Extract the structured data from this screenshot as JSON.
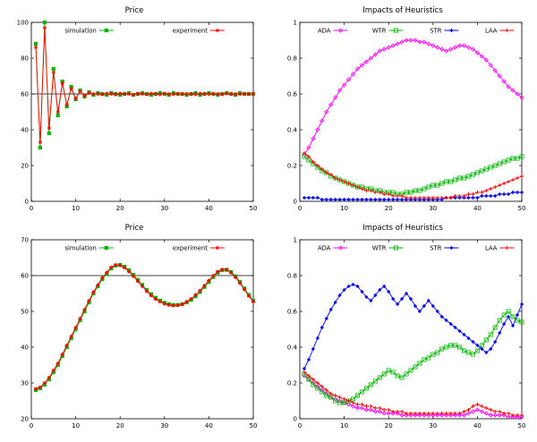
{
  "page": {
    "background": "#ffffff"
  },
  "chart_data": [
    {
      "type": "line",
      "title": "Price",
      "xlabel": "",
      "ylabel": "",
      "xlim": [
        0,
        50
      ],
      "ylim": [
        0,
        100
      ],
      "xticks": [
        0,
        10,
        20,
        30,
        40,
        50
      ],
      "yticks": [
        0,
        20,
        40,
        60,
        80,
        100
      ],
      "hline": 60,
      "grid": false,
      "legend_position": "top-inside",
      "series": [
        {
          "name": "simulation",
          "color": "#00b400",
          "marker": "square",
          "values": [
            88,
            30,
            100,
            38,
            74,
            48,
            67,
            53,
            64,
            57,
            62,
            58.5,
            61,
            59.5,
            60.5,
            60,
            59.5,
            60.5,
            60,
            59.5,
            60,
            60.5,
            59.5,
            60,
            60.5,
            60,
            59.5,
            60,
            60.5,
            60,
            59.5,
            60.5,
            60,
            60,
            59.5,
            60,
            60.5,
            59.5,
            60,
            60.5,
            60,
            59.5,
            60,
            60.5,
            60,
            59.5,
            60.5,
            60,
            60,
            60
          ]
        },
        {
          "name": "experiment",
          "color": "#ff0000",
          "marker": "star",
          "values": [
            86,
            33,
            97,
            41,
            72,
            50,
            66,
            54,
            63,
            57.5,
            61.5,
            59,
            60.5,
            60,
            60,
            59.8,
            60.2,
            60,
            59.7,
            60.3,
            60,
            60,
            59.6,
            60.2,
            60,
            59.8,
            60.3,
            60,
            59.7,
            60.2,
            60,
            59.8,
            60.2,
            59.9,
            60.1,
            60,
            59.8,
            60.2,
            60,
            59.9,
            60.1,
            60,
            59.8,
            60.2,
            60,
            60,
            59.9,
            60.1,
            60,
            60
          ]
        }
      ]
    },
    {
      "type": "line",
      "title": "Impacts of Heuristics",
      "xlabel": "",
      "ylabel": "",
      "xlim": [
        0,
        50
      ],
      "ylim": [
        0,
        1
      ],
      "xticks": [
        0,
        10,
        20,
        30,
        40,
        50
      ],
      "yticks": [
        0,
        0.2,
        0.4,
        0.6,
        0.8,
        1
      ],
      "hline": null,
      "grid": false,
      "legend_position": "top-inside",
      "series": [
        {
          "name": "ADA",
          "color": "#ff00ff",
          "marker": "diamond",
          "values": [
            0.26,
            0.3,
            0.35,
            0.4,
            0.45,
            0.5,
            0.54,
            0.58,
            0.62,
            0.65,
            0.68,
            0.71,
            0.74,
            0.76,
            0.78,
            0.8,
            0.82,
            0.84,
            0.85,
            0.86,
            0.87,
            0.88,
            0.89,
            0.9,
            0.9,
            0.9,
            0.89,
            0.89,
            0.88,
            0.87,
            0.86,
            0.85,
            0.84,
            0.85,
            0.86,
            0.87,
            0.87,
            0.86,
            0.85,
            0.83,
            0.81,
            0.79,
            0.76,
            0.73,
            0.7,
            0.67,
            0.64,
            0.62,
            0.6,
            0.58
          ]
        },
        {
          "name": "WTR",
          "color": "#00b400",
          "marker": "osquare",
          "values": [
            0.25,
            0.23,
            0.21,
            0.19,
            0.17,
            0.16,
            0.14,
            0.13,
            0.12,
            0.11,
            0.1,
            0.09,
            0.08,
            0.08,
            0.07,
            0.07,
            0.06,
            0.06,
            0.05,
            0.05,
            0.05,
            0.04,
            0.04,
            0.05,
            0.05,
            0.06,
            0.06,
            0.07,
            0.08,
            0.09,
            0.09,
            0.1,
            0.11,
            0.11,
            0.12,
            0.13,
            0.13,
            0.14,
            0.15,
            0.16,
            0.17,
            0.18,
            0.19,
            0.2,
            0.21,
            0.22,
            0.23,
            0.24,
            0.24,
            0.25
          ]
        },
        {
          "name": "STR",
          "color": "#0000ff",
          "marker": "fdiamond",
          "values": [
            0.02,
            0.02,
            0.02,
            0.02,
            0.01,
            0.01,
            0.01,
            0.01,
            0.01,
            0.01,
            0.01,
            0.01,
            0.01,
            0.01,
            0.01,
            0.01,
            0.01,
            0.01,
            0.01,
            0.01,
            0.01,
            0.01,
            0.01,
            0.01,
            0.01,
            0.01,
            0.01,
            0.01,
            0.01,
            0.01,
            0.01,
            0.01,
            0.02,
            0.02,
            0.02,
            0.02,
            0.02,
            0.02,
            0.02,
            0.02,
            0.03,
            0.03,
            0.03,
            0.03,
            0.04,
            0.04,
            0.04,
            0.05,
            0.05,
            0.05
          ]
        },
        {
          "name": "LAA",
          "color": "#ff0000",
          "marker": "plus",
          "values": [
            0.27,
            0.25,
            0.22,
            0.2,
            0.18,
            0.16,
            0.15,
            0.13,
            0.12,
            0.11,
            0.1,
            0.09,
            0.08,
            0.07,
            0.06,
            0.06,
            0.05,
            0.05,
            0.04,
            0.04,
            0.03,
            0.03,
            0.03,
            0.02,
            0.02,
            0.02,
            0.02,
            0.02,
            0.02,
            0.02,
            0.02,
            0.02,
            0.02,
            0.02,
            0.03,
            0.03,
            0.03,
            0.04,
            0.04,
            0.05,
            0.05,
            0.06,
            0.07,
            0.08,
            0.09,
            0.1,
            0.11,
            0.12,
            0.13,
            0.14
          ]
        }
      ]
    },
    {
      "type": "line",
      "title": "Price",
      "xlabel": "",
      "ylabel": "",
      "xlim": [
        0,
        50
      ],
      "ylim": [
        20,
        70
      ],
      "xticks": [
        0,
        10,
        20,
        30,
        40,
        50
      ],
      "yticks": [
        20,
        30,
        40,
        50,
        60,
        70
      ],
      "hline": 60,
      "grid": false,
      "legend_position": "top-inside",
      "series": [
        {
          "name": "simulation",
          "color": "#00b400",
          "marker": "square",
          "values": [
            28,
            28.5,
            29.5,
            31,
            33,
            35,
            37.5,
            40,
            42.5,
            45,
            47.5,
            50,
            52.5,
            55,
            57,
            59,
            60.5,
            62,
            62.8,
            63,
            62.5,
            61.5,
            60.2,
            58.8,
            57.4,
            56,
            54.8,
            53.8,
            53,
            52.4,
            52,
            51.8,
            51.8,
            52,
            52.5,
            53.2,
            54.2,
            55.4,
            56.8,
            58.2,
            59.6,
            60.8,
            61.5,
            61.6,
            61,
            59.8,
            58.2,
            56.4,
            54.6,
            53
          ]
        },
        {
          "name": "experiment",
          "color": "#ff0000",
          "marker": "star",
          "values": [
            28.4,
            28.8,
            30,
            31.5,
            33.5,
            35.5,
            38,
            40.5,
            43,
            45.5,
            48,
            50.5,
            53,
            55.4,
            57.4,
            59.4,
            60.9,
            62.3,
            63,
            62.8,
            62.2,
            61.1,
            59.8,
            58.4,
            57,
            55.6,
            54.4,
            53.4,
            52.7,
            52.1,
            51.8,
            51.6,
            51.7,
            52,
            52.7,
            53.5,
            54.6,
            55.8,
            57.2,
            58.6,
            60,
            61.1,
            61.7,
            61.7,
            60.8,
            59.5,
            57.9,
            56.1,
            54.3,
            52.7
          ]
        }
      ]
    },
    {
      "type": "line",
      "title": "Impacts of Heuristics",
      "xlabel": "",
      "ylabel": "",
      "xlim": [
        0,
        50
      ],
      "ylim": [
        0,
        1
      ],
      "xticks": [
        0,
        10,
        20,
        30,
        40,
        50
      ],
      "yticks": [
        0,
        0.2,
        0.4,
        0.6,
        0.8,
        1
      ],
      "hline": null,
      "grid": false,
      "legend_position": "top-inside",
      "series": [
        {
          "name": "ADA",
          "color": "#ff00ff",
          "marker": "diamond",
          "values": [
            0.24,
            0.22,
            0.2,
            0.18,
            0.16,
            0.14,
            0.12,
            0.11,
            0.1,
            0.09,
            0.08,
            0.07,
            0.06,
            0.06,
            0.05,
            0.05,
            0.04,
            0.04,
            0.03,
            0.03,
            0.03,
            0.03,
            0.02,
            0.02,
            0.02,
            0.02,
            0.02,
            0.02,
            0.02,
            0.02,
            0.02,
            0.02,
            0.02,
            0.02,
            0.02,
            0.02,
            0.02,
            0.03,
            0.04,
            0.05,
            0.04,
            0.03,
            0.02,
            0.02,
            0.02,
            0.02,
            0.01,
            0.01,
            0.01,
            0.01
          ]
        },
        {
          "name": "WTR",
          "color": "#00b400",
          "marker": "osquare",
          "values": [
            0.25,
            0.22,
            0.19,
            0.17,
            0.15,
            0.13,
            0.12,
            0.1,
            0.09,
            0.09,
            0.1,
            0.11,
            0.13,
            0.15,
            0.17,
            0.19,
            0.21,
            0.23,
            0.25,
            0.27,
            0.26,
            0.24,
            0.23,
            0.25,
            0.27,
            0.29,
            0.31,
            0.33,
            0.34,
            0.36,
            0.37,
            0.39,
            0.4,
            0.41,
            0.41,
            0.4,
            0.38,
            0.37,
            0.36,
            0.38,
            0.41,
            0.44,
            0.47,
            0.51,
            0.55,
            0.58,
            0.6,
            0.57,
            0.55,
            0.54
          ]
        },
        {
          "name": "STR",
          "color": "#0000ff",
          "marker": "fdiamond",
          "values": [
            0.28,
            0.33,
            0.39,
            0.45,
            0.51,
            0.56,
            0.61,
            0.65,
            0.69,
            0.72,
            0.74,
            0.75,
            0.74,
            0.71,
            0.68,
            0.66,
            0.69,
            0.72,
            0.74,
            0.71,
            0.67,
            0.64,
            0.67,
            0.7,
            0.67,
            0.63,
            0.6,
            0.63,
            0.66,
            0.63,
            0.6,
            0.57,
            0.55,
            0.53,
            0.51,
            0.49,
            0.47,
            0.45,
            0.43,
            0.41,
            0.39,
            0.37,
            0.39,
            0.43,
            0.48,
            0.53,
            0.57,
            0.52,
            0.58,
            0.64
          ]
        },
        {
          "name": "LAA",
          "color": "#ff0000",
          "marker": "plus",
          "values": [
            0.26,
            0.24,
            0.22,
            0.2,
            0.18,
            0.16,
            0.14,
            0.13,
            0.12,
            0.11,
            0.1,
            0.09,
            0.08,
            0.08,
            0.07,
            0.07,
            0.06,
            0.06,
            0.05,
            0.05,
            0.04,
            0.04,
            0.04,
            0.03,
            0.03,
            0.03,
            0.03,
            0.03,
            0.03,
            0.03,
            0.03,
            0.03,
            0.03,
            0.03,
            0.03,
            0.03,
            0.04,
            0.05,
            0.07,
            0.08,
            0.07,
            0.06,
            0.05,
            0.04,
            0.04,
            0.03,
            0.03,
            0.02,
            0.02,
            0.02
          ]
        }
      ]
    }
  ]
}
